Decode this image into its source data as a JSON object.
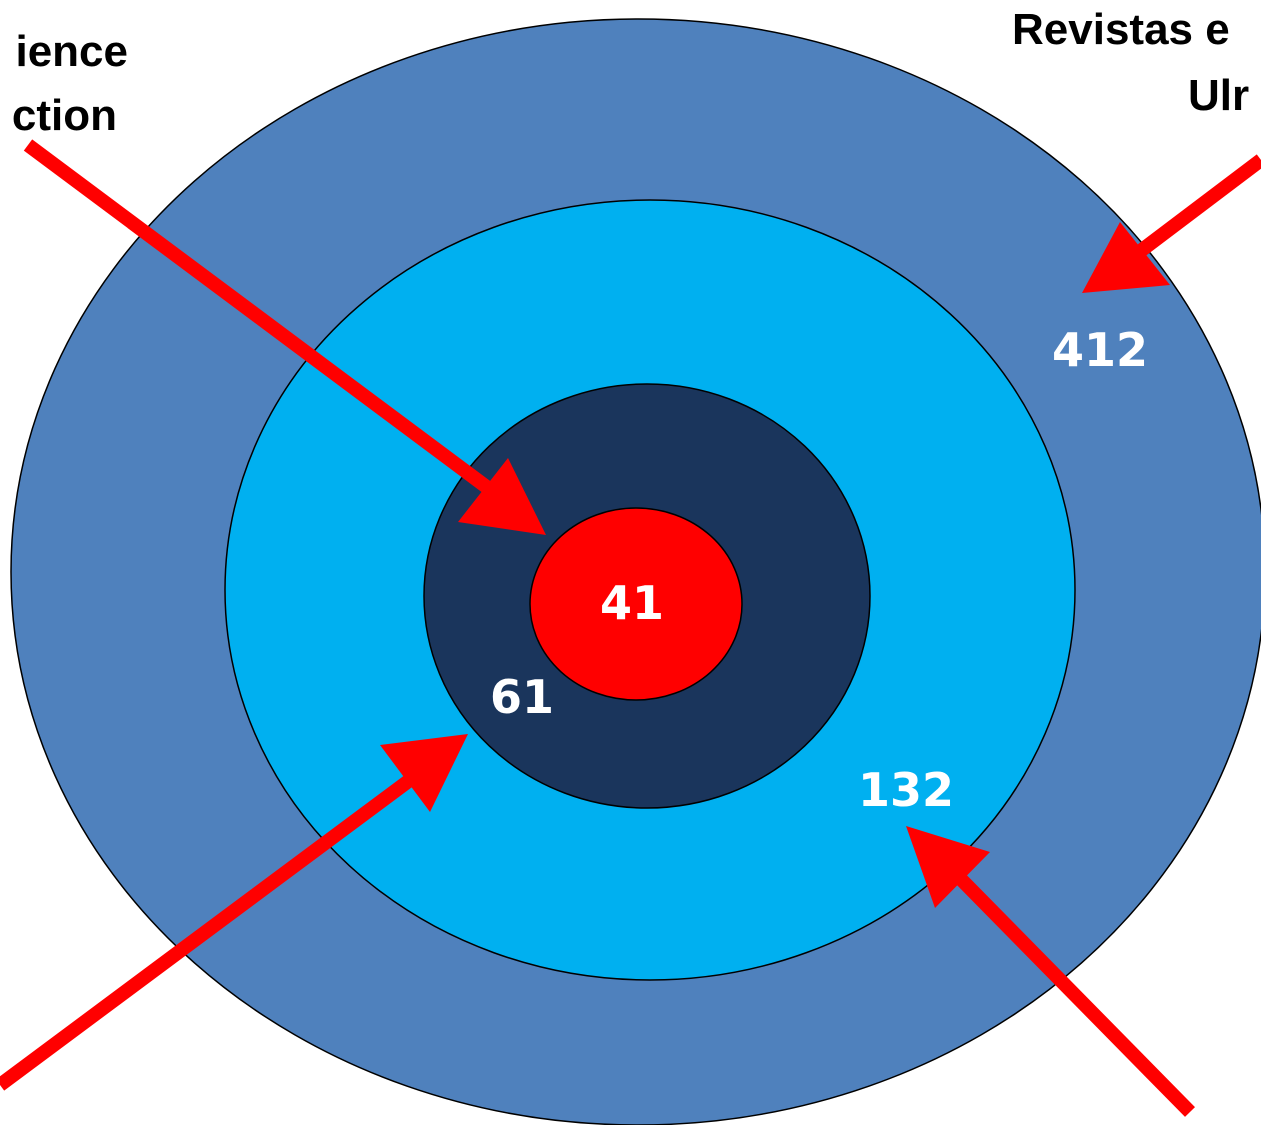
{
  "captions": {
    "top_left_line1": "ience",
    "top_left_line2": "ction",
    "top_right_line1": "Revistas e",
    "top_right_line2": "Ulr"
  },
  "rings": [
    {
      "name": "outer-ring",
      "value": "412",
      "color": "#4f81bd"
    },
    {
      "name": "middle-ring",
      "value": "132",
      "color": "#00b0f0"
    },
    {
      "name": "inner-ring",
      "value": "61",
      "color": "#1a355c"
    },
    {
      "name": "core",
      "value": "41",
      "color": "#ff0000"
    }
  ],
  "arrow_color": "#ff0000"
}
